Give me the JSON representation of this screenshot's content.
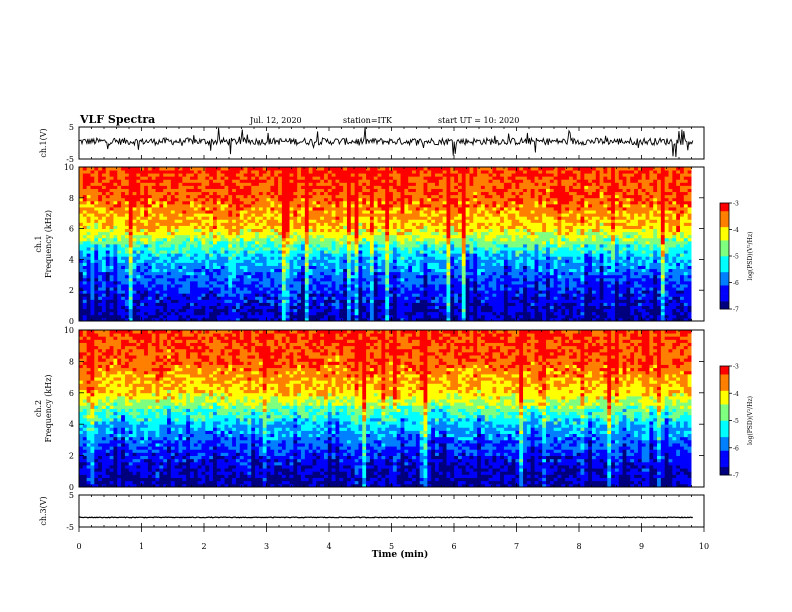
{
  "header": {
    "title": "VLF Spectra",
    "date": "Jul. 12, 2020",
    "station": "station=ITK",
    "start": "start UT =   10: 2020"
  },
  "chart_data": [
    {
      "type": "line",
      "name": "ch1-waveform",
      "ylabel": "ch.1(V)",
      "ylim": [
        -5,
        5
      ],
      "yticks": [
        "5",
        "-5"
      ],
      "xlim": [
        0,
        10
      ],
      "note_values": "noisy waveform around 0 V with spikes up to about ±5 V",
      "baseline": 0.5
    },
    {
      "type": "heatmap",
      "name": "ch1-spectrogram",
      "ylabel": "ch.1\nFrequency (kHz)",
      "ylim": [
        0,
        10
      ],
      "yticks": [
        "0",
        "2",
        "4",
        "6",
        "8",
        "10"
      ],
      "xlim": [
        0,
        9.8
      ],
      "colorbar": {
        "label": "log(PSD)(V²/Hz)",
        "range": [
          -7,
          -3
        ],
        "ticks": [
          "-3",
          "-4",
          "-5",
          "-6",
          "-7"
        ]
      },
      "profile": [
        {
          "f": 0,
          "level": -6.8
        },
        {
          "f": 2,
          "level": -6.3
        },
        {
          "f": 4,
          "level": -5.6
        },
        {
          "f": 5,
          "level": -4.9
        },
        {
          "f": 6,
          "level": -4.0
        },
        {
          "f": 8,
          "level": -3.4
        },
        {
          "f": 10,
          "level": -3.2
        }
      ]
    },
    {
      "type": "heatmap",
      "name": "ch2-spectrogram",
      "ylabel": "ch.2\nFrequency (kHz)",
      "ylim": [
        0,
        10
      ],
      "yticks": [
        "0",
        "2",
        "4",
        "6",
        "8",
        "10"
      ],
      "xlim": [
        0,
        9.8
      ],
      "colorbar": {
        "label": "log(PSD)(V²/Hz)",
        "range": [
          -7,
          -3
        ],
        "ticks": [
          "-3",
          "-4",
          "-5",
          "-6",
          "-7"
        ]
      },
      "profile": [
        {
          "f": 0,
          "level": -6.9
        },
        {
          "f": 2,
          "level": -6.4
        },
        {
          "f": 4,
          "level": -5.5
        },
        {
          "f": 5,
          "level": -4.8
        },
        {
          "f": 6,
          "level": -4.0
        },
        {
          "f": 8,
          "level": -3.4
        },
        {
          "f": 10,
          "level": -3.2
        }
      ]
    },
    {
      "type": "line",
      "name": "ch3-waveform",
      "ylabel": "ch.3(V)",
      "ylim": [
        -5,
        5
      ],
      "yticks": [
        "5",
        "-5"
      ],
      "xlim": [
        0,
        10
      ],
      "baseline": -2.0
    }
  ],
  "xaxis": {
    "label": "Time (min)",
    "ticks": [
      "0",
      "1",
      "2",
      "3",
      "4",
      "5",
      "6",
      "7",
      "8",
      "9",
      "10"
    ],
    "range": [
      0,
      10
    ]
  },
  "colors": {
    "jet": [
      "#00007f",
      "#0000ff",
      "#007fff",
      "#00ffff",
      "#7fff7f",
      "#ffff00",
      "#ff7f00",
      "#ff0000"
    ]
  }
}
